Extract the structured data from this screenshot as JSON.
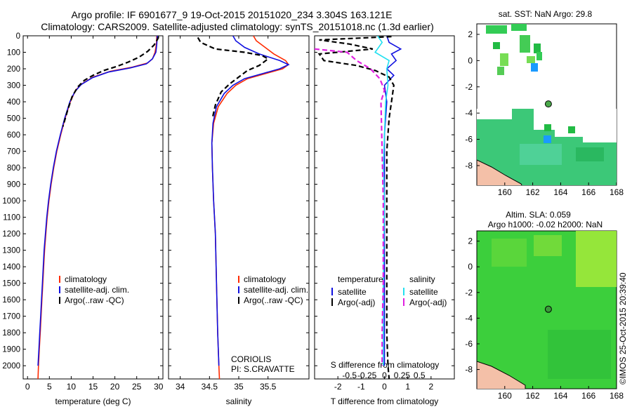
{
  "title_line1": "Argo profile: IF 6901677_9 19-Oct-2015 20151020_234 3.304S 163.121E",
  "title_line2": "Climatology: CARS2009. Satellite-adjusted climatology: synTS_20151018.nc (1.3d earlier)",
  "credit": "©IMOS 25-Oct-2015 20:39:40",
  "colors": {
    "climatology": "#ff2a00",
    "satellite": "#1010e0",
    "argo": "#000000",
    "sat_salinity": "#22e0f0",
    "argo_salinity": "#e020e0",
    "land": "#f4c0a8"
  },
  "chart_data": [
    {
      "id": "temperature",
      "type": "line",
      "xlabel": "temperature (deg C)",
      "ylabel": "",
      "xlim": [
        -1,
        31
      ],
      "ylim": [
        2080,
        0
      ],
      "xticks": [
        0,
        5,
        10,
        15,
        20,
        25,
        30
      ],
      "yticks": [
        0,
        100,
        200,
        300,
        400,
        500,
        600,
        700,
        800,
        900,
        1000,
        1100,
        1200,
        1300,
        1400,
        1500,
        1600,
        1700,
        1800,
        1900,
        2000
      ],
      "legend": [
        "climatology",
        "satellite-adj. clim.",
        "Argo(..raw -QC)"
      ],
      "series": [
        {
          "name": "climatology",
          "color": "#ff2a00",
          "dash": "",
          "points": [
            [
              29.6,
              0
            ],
            [
              29.5,
              50
            ],
            [
              29.2,
              100
            ],
            [
              28.6,
              140
            ],
            [
              27.5,
              165
            ],
            [
              24,
              190
            ],
            [
              19,
              215
            ],
            [
              15,
              250
            ],
            [
              12.5,
              290
            ],
            [
              11,
              330
            ],
            [
              9.8,
              400
            ],
            [
              8.6,
              500
            ],
            [
              7.6,
              600
            ],
            [
              6.7,
              700
            ],
            [
              6,
              800
            ],
            [
              5.4,
              900
            ],
            [
              4.9,
              1000
            ],
            [
              4.5,
              1100
            ],
            [
              4.2,
              1200
            ],
            [
              3.9,
              1300
            ],
            [
              3.7,
              1400
            ],
            [
              3.5,
              1500
            ],
            [
              3.3,
              1600
            ],
            [
              3.1,
              1700
            ],
            [
              2.9,
              1800
            ],
            [
              2.7,
              1900
            ],
            [
              2.5,
              2000
            ],
            [
              2.4,
              2080
            ]
          ]
        },
        {
          "name": "satellite-adj. clim.",
          "color": "#1010e0",
          "dash": "",
          "points": [
            [
              29.7,
              0
            ],
            [
              29.6,
              50
            ],
            [
              29.4,
              100
            ],
            [
              28.6,
              140
            ],
            [
              27.2,
              170
            ],
            [
              23.5,
              195
            ],
            [
              18.5,
              220
            ],
            [
              14.8,
              255
            ],
            [
              12.3,
              295
            ],
            [
              10.8,
              340
            ],
            [
              9.7,
              400
            ],
            [
              8.5,
              500
            ],
            [
              7.5,
              600
            ],
            [
              6.6,
              700
            ],
            [
              5.9,
              800
            ],
            [
              5.3,
              900
            ],
            [
              4.8,
              1000
            ],
            [
              4.4,
              1100
            ],
            [
              4.1,
              1200
            ],
            [
              3.8,
              1300
            ],
            [
              3.6,
              1400
            ],
            [
              3.4,
              1500
            ],
            [
              3.2,
              1600
            ],
            [
              3,
              1700
            ],
            [
              2.8,
              1800
            ],
            [
              2.6,
              1900
            ],
            [
              2.4,
              2000
            ]
          ]
        },
        {
          "name": "Argo(..raw -QC)",
          "color": "#000000",
          "dash": "7,4",
          "points": [
            [
              30,
              5
            ],
            [
              29.8,
              20
            ],
            [
              29,
              55
            ],
            [
              27.5,
              95
            ],
            [
              25.5,
              130
            ],
            [
              23,
              160
            ],
            [
              20.5,
              185
            ],
            [
              17.5,
              210
            ],
            [
              15,
              240
            ],
            [
              13,
              270
            ],
            [
              11.5,
              310
            ],
            [
              10.2,
              370
            ],
            [
              9.2,
              450
            ],
            [
              8.1,
              550
            ]
          ]
        }
      ]
    },
    {
      "id": "salinity",
      "type": "line",
      "xlabel": "salinity",
      "ylabel": "",
      "xlim": [
        33.8,
        36.2
      ],
      "ylim": [
        2080,
        0
      ],
      "xticks": [
        34,
        34.5,
        35,
        35.5
      ],
      "legend": [
        "climatology",
        "satellite-adj. clim.",
        "Argo(..raw -QC)"
      ],
      "annotations": [
        "CORIOLIS",
        "PI: S.CRAVATTE"
      ],
      "series": [
        {
          "name": "climatology",
          "color": "#ff2a00",
          "dash": "",
          "points": [
            [
              35.25,
              0
            ],
            [
              35.3,
              30
            ],
            [
              35.45,
              70
            ],
            [
              35.6,
              110
            ],
            [
              35.8,
              150
            ],
            [
              35.85,
              175
            ],
            [
              35.75,
              200
            ],
            [
              35.5,
              225
            ],
            [
              35.15,
              260
            ],
            [
              34.95,
              300
            ],
            [
              34.8,
              350
            ],
            [
              34.65,
              430
            ],
            [
              34.57,
              530
            ],
            [
              34.54,
              650
            ],
            [
              34.55,
              800
            ],
            [
              34.57,
              1000
            ],
            [
              34.6,
              1200
            ],
            [
              34.62,
              1500
            ],
            [
              34.64,
              1800
            ],
            [
              34.66,
              2000
            ],
            [
              34.67,
              2080
            ]
          ]
        },
        {
          "name": "satellite-adj. clim.",
          "color": "#1010e0",
          "dash": "",
          "points": [
            [
              34.9,
              0
            ],
            [
              34.95,
              30
            ],
            [
              35.1,
              70
            ],
            [
              35.35,
              110
            ],
            [
              35.7,
              150
            ],
            [
              35.85,
              175
            ],
            [
              35.7,
              200
            ],
            [
              35.45,
              225
            ],
            [
              35.1,
              260
            ],
            [
              34.9,
              300
            ],
            [
              34.75,
              350
            ],
            [
              34.62,
              430
            ],
            [
              34.56,
              530
            ],
            [
              34.54,
              650
            ],
            [
              34.55,
              800
            ],
            [
              34.57,
              1000
            ],
            [
              34.6,
              1200
            ],
            [
              34.62,
              1500
            ],
            [
              34.64,
              1800
            ],
            [
              34.66,
              2000
            ]
          ]
        },
        {
          "name": "Argo(..raw -QC)",
          "color": "#000000",
          "dash": "7,4",
          "points": [
            [
              34.3,
              10
            ],
            [
              34.35,
              40
            ],
            [
              34.6,
              80
            ],
            [
              35.1,
              100
            ],
            [
              35.4,
              120
            ],
            [
              35.5,
              140
            ],
            [
              35.35,
              180
            ],
            [
              35.15,
              210
            ],
            [
              35.0,
              250
            ],
            [
              34.85,
              290
            ],
            [
              34.7,
              340
            ],
            [
              34.6,
              420
            ],
            [
              34.55,
              500
            ]
          ]
        }
      ]
    },
    {
      "id": "difference",
      "type": "line",
      "xlabel": "T difference from climatology",
      "xlabel_top": "S difference from climatology",
      "xlim": [
        -3,
        3
      ],
      "ylim": [
        2080,
        0
      ],
      "xticks": [
        -2,
        -1,
        0,
        1,
        2
      ],
      "xticks_top": [
        -0.5,
        -0.25,
        0,
        0.25,
        0.5
      ],
      "legend": [
        "temperature",
        "salinity",
        "satellite",
        "satellite",
        "Argo(-adj)",
        "Argo(-adj)"
      ],
      "series": [
        {
          "name": "T satellite",
          "color": "#1010e0",
          "dash": "",
          "points": [
            [
              0.1,
              0
            ],
            [
              0.2,
              40
            ],
            [
              0.7,
              80
            ],
            [
              0.3,
              110
            ],
            [
              0.5,
              150
            ],
            [
              0.1,
              200
            ],
            [
              0.4,
              240
            ],
            [
              0,
              300
            ],
            [
              0.1,
              400
            ],
            [
              0,
              600
            ],
            [
              0,
              1000
            ],
            [
              0,
              1500
            ],
            [
              0,
              2000
            ]
          ]
        },
        {
          "name": "T Argo(-adj)",
          "color": "#000000",
          "dash": "7,4",
          "points": [
            [
              0.3,
              5
            ],
            [
              -2.8,
              25
            ],
            [
              -1.5,
              50
            ],
            [
              -0.5,
              80
            ],
            [
              -2.8,
              110
            ],
            [
              -2.6,
              150
            ],
            [
              -1.2,
              180
            ],
            [
              -0.4,
              210
            ],
            [
              0.2,
              250
            ],
            [
              0.4,
              300
            ],
            [
              0.3,
              400
            ],
            [
              0.2,
              500
            ],
            [
              0.1,
              700
            ],
            [
              0.1,
              1000
            ],
            [
              0.1,
              1500
            ],
            [
              0.1,
              1800
            ],
            [
              0.15,
              2000
            ],
            [
              0.2,
              2080
            ]
          ]
        },
        {
          "name": "S satellite",
          "color": "#22e0f0",
          "dash": "",
          "points": [
            [
              -0.3,
              0
            ],
            [
              -0.1,
              40
            ],
            [
              -0.4,
              100
            ],
            [
              0.2,
              150
            ],
            [
              0.1,
              200
            ],
            [
              0.15,
              300
            ],
            [
              0.05,
              400
            ],
            [
              0,
              600
            ],
            [
              -0.05,
              800
            ],
            [
              0,
              1000
            ],
            [
              -0.05,
              1500
            ],
            [
              -0.05,
              2000
            ]
          ]
        },
        {
          "name": "S Argo(-adj)",
          "color": "#e020e0",
          "dash": "7,4",
          "points": [
            [
              -3,
              80
            ],
            [
              -1.6,
              100
            ],
            [
              -1.2,
              150
            ],
            [
              -0.6,
              200
            ],
            [
              -0.2,
              260
            ],
            [
              0,
              330
            ],
            [
              -0.15,
              400
            ],
            [
              -0.1,
              700
            ],
            [
              -0.05,
              1000
            ],
            [
              -0.05,
              1500
            ],
            [
              -0.1,
              1800
            ],
            [
              -0.1,
              2000
            ]
          ]
        }
      ]
    },
    {
      "id": "sst_map",
      "type": "heatmap",
      "title": "sat. SST: NaN Argo: 29.8",
      "xlim": [
        158,
        168
      ],
      "ylim": [
        -9.5,
        2.8
      ],
      "xticks": [
        160,
        162,
        164,
        166,
        168
      ],
      "yticks": [
        -8,
        -6,
        -4,
        -2,
        0,
        2
      ],
      "argo_position": [
        163.121,
        -3.304
      ]
    },
    {
      "id": "sla_map",
      "type": "heatmap",
      "title": "Altim. SLA: 0.059",
      "subtitle": "Argo h1000: -0.02 h2000: NaN",
      "xlim": [
        158,
        168
      ],
      "ylim": [
        -9.5,
        2.8
      ],
      "xticks": [
        160,
        162,
        164,
        166,
        168
      ],
      "yticks": [
        -8,
        -6,
        -4,
        -2,
        0,
        2
      ],
      "argo_position": [
        163.121,
        -3.304
      ]
    }
  ]
}
